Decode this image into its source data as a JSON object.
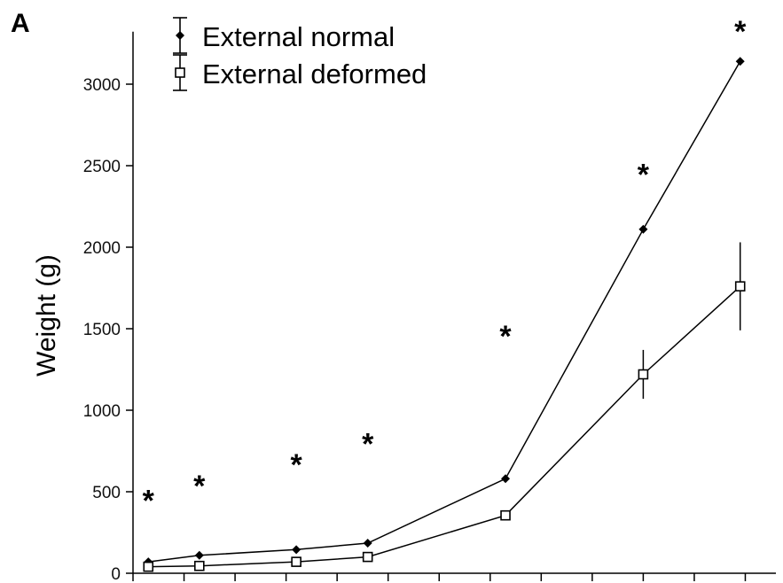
{
  "panel_label": "A",
  "chart_data": {
    "type": "line",
    "ylabel": "Weight (g)",
    "xlabel": "",
    "ylim": [
      0,
      3300
    ],
    "yticks": [
      0,
      500,
      1000,
      1500,
      2000,
      2500,
      3000
    ],
    "x_ticks": [
      0.0,
      1.0,
      2.0,
      3.0,
      4.0,
      5.0,
      6.0,
      7.0,
      8.0,
      9.0,
      10.0,
      11.0,
      12.0
    ],
    "x": [
      0.3,
      1.3,
      3.2,
      4.6,
      7.3,
      10.0,
      11.9
    ],
    "series": [
      {
        "name": "External normal",
        "marker": "filled-diamond",
        "values": [
          70,
          110,
          145,
          185,
          580,
          2110,
          3140
        ],
        "errors": [
          0,
          0,
          0,
          0,
          0,
          0,
          0
        ]
      },
      {
        "name": "External deformed",
        "marker": "open-square",
        "values": [
          40,
          45,
          70,
          100,
          355,
          1220,
          1760
        ],
        "errors": [
          0,
          0,
          0,
          0,
          0,
          150,
          270
        ]
      }
    ],
    "significance": {
      "symbol": "*",
      "points": [
        {
          "x": 0.3,
          "y": 480
        },
        {
          "x": 1.3,
          "y": 570
        },
        {
          "x": 3.2,
          "y": 700
        },
        {
          "x": 4.6,
          "y": 830
        },
        {
          "x": 7.3,
          "y": 1490
        },
        {
          "x": 10.0,
          "y": 2480
        },
        {
          "x": 11.9,
          "y": 3360
        }
      ]
    },
    "legend": {
      "placement": "top-left"
    },
    "grid": false
  }
}
